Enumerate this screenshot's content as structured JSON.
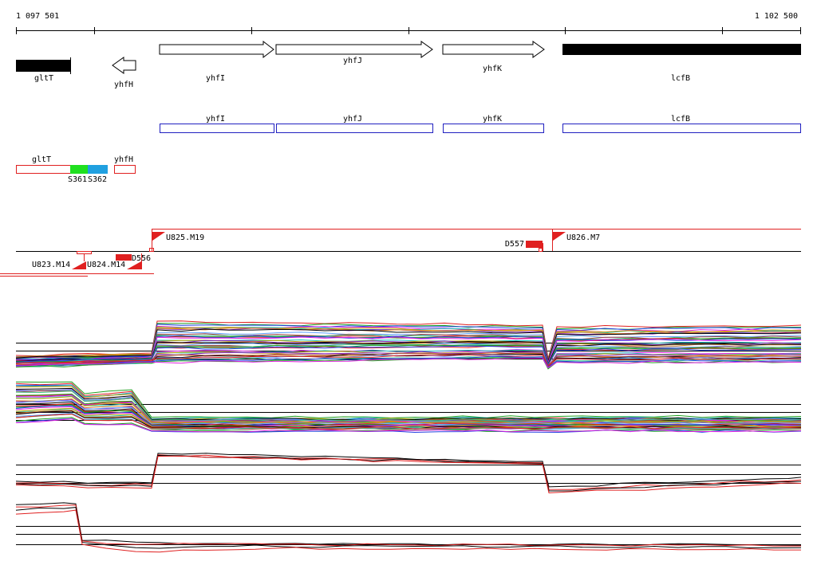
{
  "ruler": {
    "start": "1 097 501",
    "end": "1 102 500"
  },
  "genes": [
    {
      "label": "gltT"
    },
    {
      "label": "yhfH"
    },
    {
      "label": "yhfI"
    },
    {
      "label": "yhfJ"
    },
    {
      "label": "yhfK"
    },
    {
      "label": "lcfB"
    }
  ],
  "gene_models": [
    {
      "label": "yhfI"
    },
    {
      "label": "yhfJ"
    },
    {
      "label": "yhfK"
    },
    {
      "label": "lcfB"
    }
  ],
  "operon": {
    "gltT": "gltT",
    "yhfH": "yhfH",
    "sites": [
      "S361",
      "S362"
    ]
  },
  "features": [
    {
      "label": "U825.M19"
    },
    {
      "label": "D557"
    },
    {
      "label": "U826.M7"
    },
    {
      "label": "U823.M14"
    },
    {
      "label": "U824.M14"
    },
    {
      "label": "D556"
    }
  ]
}
